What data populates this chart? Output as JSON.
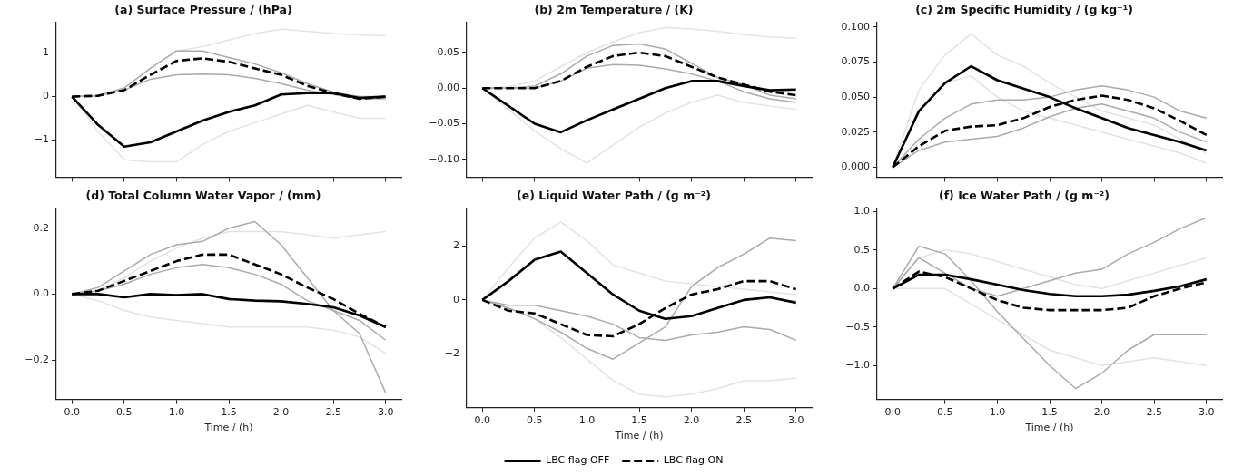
{
  "chart_data": [
    {
      "type": "line",
      "title": "(a) Surface Pressure / (hPa)",
      "tick_labels": "y",
      "x": [
        0,
        0.25,
        0.5,
        0.75,
        1,
        1.25,
        1.5,
        1.75,
        2,
        2.25,
        2.5,
        2.75,
        3
      ],
      "xlim": [
        -0.15,
        3.15
      ],
      "xticks": [
        0,
        0.5,
        1,
        1.5,
        2,
        2.5,
        3
      ],
      "ylim": [
        -1.85,
        1.7
      ],
      "yticks": [
        {
          "value": -1,
          "label": "−1"
        },
        0,
        1
      ],
      "series": [
        {
          "color": "#000000",
          "line_style": "solid",
          "values": [
            0,
            -0.65,
            -1.15,
            -1.05,
            -0.8,
            -0.55,
            -0.35,
            -0.2,
            0.05,
            0.08,
            0.08,
            -0.03,
            0
          ]
        },
        {
          "color": "#000000",
          "line_style": "dashed",
          "values": [
            0,
            0.02,
            0.15,
            0.5,
            0.82,
            0.88,
            0.8,
            0.65,
            0.5,
            0.25,
            0.08,
            -0.05,
            0
          ]
        },
        {
          "color": "#aaaaaa",
          "values": [
            0,
            0.02,
            0.2,
            0.65,
            1.05,
            1.05,
            0.9,
            0.75,
            0.55,
            0.3,
            0.1,
            0,
            0
          ]
        },
        {
          "color": "#aaaaaa",
          "values": [
            0,
            0.02,
            0.15,
            0.4,
            0.5,
            0.52,
            0.5,
            0.42,
            0.3,
            0.15,
            0.05,
            -0.05,
            -0.05
          ]
        },
        {
          "color": "#e3e3e3",
          "values": [
            0,
            0.03,
            0.2,
            0.65,
            1.05,
            1.15,
            1.3,
            1.45,
            1.55,
            1.5,
            1.45,
            1.42,
            1.4
          ]
        },
        {
          "color": "#e3e3e3",
          "values": [
            0,
            -0.8,
            -1.45,
            -1.5,
            -1.5,
            -1.1,
            -0.8,
            -0.6,
            -0.4,
            -0.2,
            -0.35,
            -0.5,
            -0.5
          ]
        }
      ]
    },
    {
      "type": "line",
      "title": "(b) 2m Temperature / (K)",
      "tick_labels": "y",
      "x": [
        0,
        0.25,
        0.5,
        0.75,
        1,
        1.25,
        1.5,
        1.75,
        2,
        2.25,
        2.5,
        2.75,
        3
      ],
      "xlim": [
        -0.15,
        3.15
      ],
      "xticks": [
        0,
        0.5,
        1,
        1.5,
        2,
        2.5,
        3
      ],
      "ylim": [
        -0.125,
        0.092
      ],
      "yticks": [
        {
          "value": -0.1,
          "label": "−0.10"
        },
        {
          "value": -0.05,
          "label": "−0.05"
        },
        {
          "value": 0,
          "label": "0.00"
        },
        {
          "value": 0.05,
          "label": "0.05"
        }
      ],
      "series": [
        {
          "color": "#000000",
          "line_style": "solid",
          "values": [
            0,
            -0.025,
            -0.05,
            -0.062,
            -0.045,
            -0.03,
            -0.015,
            0,
            0.01,
            0.01,
            0.003,
            -0.003,
            -0.002
          ]
        },
        {
          "color": "#000000",
          "line_style": "dashed",
          "values": [
            0,
            0,
            0,
            0.01,
            0.03,
            0.045,
            0.05,
            0.045,
            0.03,
            0.015,
            0.005,
            -0.005,
            -0.01
          ]
        },
        {
          "color": "#aaaaaa",
          "values": [
            0,
            0,
            0.003,
            0.02,
            0.045,
            0.06,
            0.062,
            0.055,
            0.035,
            0.015,
            0.005,
            -0.01,
            -0.015
          ]
        },
        {
          "color": "#aaaaaa",
          "values": [
            0,
            0,
            0,
            0.01,
            0.028,
            0.033,
            0.032,
            0.027,
            0.02,
            0.01,
            -0.005,
            -0.015,
            -0.02
          ]
        },
        {
          "color": "#e3e3e3",
          "values": [
            0,
            0.002,
            0.01,
            0.03,
            0.05,
            0.065,
            0.078,
            0.085,
            0.083,
            0.08,
            0.075,
            0.072,
            0.07
          ]
        },
        {
          "color": "#e3e3e3",
          "values": [
            0,
            -0.03,
            -0.06,
            -0.085,
            -0.105,
            -0.08,
            -0.055,
            -0.035,
            -0.02,
            -0.01,
            -0.02,
            -0.025,
            -0.03
          ]
        }
      ]
    },
    {
      "type": "line",
      "title": "(c) 2m Specific Humidity / (g kg⁻¹)",
      "tick_labels": "y",
      "x": [
        0,
        0.25,
        0.5,
        0.75,
        1,
        1.25,
        1.5,
        1.75,
        2,
        2.25,
        2.5,
        2.75,
        3
      ],
      "xlim": [
        -0.15,
        3.15
      ],
      "xticks": [
        0,
        0.5,
        1,
        1.5,
        2,
        2.5,
        3
      ],
      "ylim": [
        -0.007,
        0.103
      ],
      "yticks": [
        {
          "value": 0,
          "label": "0.000"
        },
        {
          "value": 0.025,
          "label": "0.025"
        },
        {
          "value": 0.05,
          "label": "0.050"
        },
        {
          "value": 0.075,
          "label": "0.075"
        },
        {
          "value": 0.1,
          "label": "0.100"
        }
      ],
      "series": [
        {
          "color": "#000000",
          "line_style": "solid",
          "values": [
            0,
            0.04,
            0.06,
            0.072,
            0.062,
            0.056,
            0.05,
            0.042,
            0.035,
            0.028,
            0.023,
            0.018,
            0.012
          ]
        },
        {
          "color": "#000000",
          "line_style": "dashed",
          "values": [
            0,
            0.015,
            0.026,
            0.029,
            0.03,
            0.035,
            0.043,
            0.048,
            0.051,
            0.048,
            0.042,
            0.033,
            0.023
          ]
        },
        {
          "color": "#aaaaaa",
          "values": [
            0,
            0.02,
            0.035,
            0.045,
            0.048,
            0.048,
            0.05,
            0.055,
            0.058,
            0.055,
            0.05,
            0.04,
            0.035
          ]
        },
        {
          "color": "#aaaaaa",
          "values": [
            0,
            0.012,
            0.018,
            0.02,
            0.022,
            0.028,
            0.036,
            0.042,
            0.045,
            0.04,
            0.035,
            0.025,
            0.018
          ]
        },
        {
          "color": "#e3e3e3",
          "values": [
            0,
            0.055,
            0.08,
            0.095,
            0.08,
            0.072,
            0.06,
            0.05,
            0.04,
            0.035,
            0.03,
            0.02,
            0.01
          ]
        },
        {
          "color": "#e3e3e3",
          "values": [
            0,
            0.04,
            0.06,
            0.065,
            0.05,
            0.04,
            0.035,
            0.03,
            0.025,
            0.02,
            0.015,
            0.01,
            0.003
          ]
        }
      ]
    },
    {
      "type": "line",
      "title": "(d) Total Column Water Vapor / (mm)",
      "xlabel": "Time / (h)",
      "x": [
        0,
        0.25,
        0.5,
        0.75,
        1,
        1.25,
        1.5,
        1.75,
        2,
        2.25,
        2.5,
        2.75,
        3
      ],
      "xlim": [
        -0.15,
        3.15
      ],
      "xticks": [
        {
          "value": 0,
          "label": "0.0"
        },
        {
          "value": 0.5,
          "label": "0.5"
        },
        {
          "value": 1,
          "label": "1.0"
        },
        {
          "value": 1.5,
          "label": "1.5"
        },
        {
          "value": 2,
          "label": "2.0"
        },
        {
          "value": 2.5,
          "label": "2.5"
        },
        {
          "value": 3,
          "label": "3.0"
        }
      ],
      "ylim": [
        -0.32,
        0.26
      ],
      "yticks": [
        {
          "value": -0.2,
          "label": "−0.2"
        },
        {
          "value": 0,
          "label": "0.0"
        },
        {
          "value": 0.2,
          "label": "0.2"
        }
      ],
      "series": [
        {
          "color": "#000000",
          "line_style": "solid",
          "values": [
            0,
            0,
            -0.01,
            0,
            -0.003,
            0,
            -0.015,
            -0.02,
            -0.022,
            -0.03,
            -0.04,
            -0.065,
            -0.1
          ]
        },
        {
          "color": "#000000",
          "line_style": "dashed",
          "values": [
            0,
            0.01,
            0.04,
            0.07,
            0.1,
            0.12,
            0.12,
            0.09,
            0.06,
            0.02,
            -0.015,
            -0.06,
            -0.1
          ]
        },
        {
          "color": "#aaaaaa",
          "values": [
            0,
            0.02,
            0.07,
            0.12,
            0.15,
            0.16,
            0.2,
            0.22,
            0.15,
            0.05,
            -0.05,
            -0.12,
            -0.3
          ]
        },
        {
          "color": "#aaaaaa",
          "values": [
            0,
            0.01,
            0.03,
            0.06,
            0.08,
            0.09,
            0.08,
            0.06,
            0.03,
            -0.02,
            -0.05,
            -0.08,
            -0.14
          ]
        },
        {
          "color": "#e3e3e3",
          "values": [
            0,
            0.01,
            0.05,
            0.1,
            0.14,
            0.17,
            0.19,
            0.19,
            0.19,
            0.18,
            0.17,
            0.18,
            0.19
          ]
        },
        {
          "color": "#e3e3e3",
          "values": [
            0,
            -0.02,
            -0.05,
            -0.07,
            -0.08,
            -0.09,
            -0.1,
            -0.1,
            -0.1,
            -0.1,
            -0.11,
            -0.13,
            -0.18
          ]
        }
      ]
    },
    {
      "type": "line",
      "title": "(e) Liquid Water Path / (g m⁻²)",
      "xlabel": "Time / (h)",
      "legend": "bottom",
      "x": [
        0,
        0.25,
        0.5,
        0.75,
        1,
        1.25,
        1.5,
        1.75,
        2,
        2.25,
        2.5,
        2.75,
        3
      ],
      "xlim": [
        -0.15,
        3.15
      ],
      "xticks": [
        {
          "value": 0,
          "label": "0.0"
        },
        {
          "value": 0.5,
          "label": "0.5"
        },
        {
          "value": 1,
          "label": "1.0"
        },
        {
          "value": 1.5,
          "label": "1.5"
        },
        {
          "value": 2,
          "label": "2.0"
        },
        {
          "value": 2.5,
          "label": "2.5"
        },
        {
          "value": 3,
          "label": "3.0"
        }
      ],
      "ylim": [
        -4,
        3.4
      ],
      "yticks": [
        {
          "value": -2,
          "label": "−2"
        },
        0,
        2
      ],
      "series": [
        {
          "name": "LBC flag OFF",
          "color": "#000000",
          "line_style": "solid",
          "values": [
            0,
            0.7,
            1.5,
            1.8,
            1,
            0.2,
            -0.4,
            -0.7,
            -0.6,
            -0.3,
            0,
            0.1,
            -0.1
          ]
        },
        {
          "name": "LBC flag ON",
          "color": "#000000",
          "line_style": "dashed",
          "values": [
            0,
            -0.4,
            -0.5,
            -0.9,
            -1.3,
            -1.35,
            -0.9,
            -0.3,
            0.2,
            0.4,
            0.7,
            0.7,
            0.4
          ]
        },
        {
          "color": "#aaaaaa",
          "values": [
            0,
            -0.3,
            -0.7,
            -1.2,
            -1.8,
            -2.2,
            -1.6,
            -1,
            0.5,
            1.2,
            1.7,
            2.3,
            2.2
          ]
        },
        {
          "color": "#aaaaaa",
          "values": [
            0,
            -0.2,
            -0.2,
            -0.4,
            -0.6,
            -0.9,
            -1.4,
            -1.5,
            -1.3,
            -1.2,
            -1,
            -1.1,
            -1.5
          ]
        },
        {
          "color": "#e3e3e3",
          "values": [
            0,
            1.2,
            2.3,
            2.9,
            2.2,
            1.3,
            1,
            0.7,
            0.6,
            0.5,
            0.4,
            0.3,
            0.2
          ]
        },
        {
          "color": "#e3e3e3",
          "values": [
            0,
            -0.3,
            -0.7,
            -1.4,
            -2.2,
            -3,
            -3.5,
            -3.6,
            -3.5,
            -3.3,
            -3,
            -3,
            -2.9
          ]
        }
      ]
    },
    {
      "type": "line",
      "title": "(f) Ice Water Path / (g m⁻²)",
      "xlabel": "Time / (h)",
      "x": [
        0,
        0.25,
        0.5,
        0.75,
        1,
        1.25,
        1.5,
        1.75,
        2,
        2.25,
        2.5,
        2.75,
        3
      ],
      "xlim": [
        -0.15,
        3.15
      ],
      "xticks": [
        {
          "value": 0,
          "label": "0.0"
        },
        {
          "value": 0.5,
          "label": "0.5"
        },
        {
          "value": 1,
          "label": "1.0"
        },
        {
          "value": 1.5,
          "label": "1.5"
        },
        {
          "value": 2,
          "label": "2.0"
        },
        {
          "value": 2.5,
          "label": "2.5"
        },
        {
          "value": 3,
          "label": "3.0"
        }
      ],
      "ylim": [
        -1.44,
        1.04
      ],
      "yticks": [
        {
          "value": -1,
          "label": "−1.0"
        },
        {
          "value": -0.5,
          "label": "−0.5"
        },
        {
          "value": 0,
          "label": "0.0"
        },
        {
          "value": 0.5,
          "label": "0.5"
        },
        {
          "value": 1,
          "label": "1.0"
        }
      ],
      "series": [
        {
          "color": "#000000",
          "line_style": "solid",
          "values": [
            0,
            0.18,
            0.18,
            0.12,
            0.05,
            -0.02,
            -0.07,
            -0.1,
            -0.1,
            -0.08,
            -0.03,
            0.03,
            0.12
          ]
        },
        {
          "color": "#000000",
          "line_style": "dashed",
          "values": [
            0,
            0.22,
            0.15,
            0,
            -0.15,
            -0.25,
            -0.28,
            -0.28,
            -0.28,
            -0.25,
            -0.1,
            0,
            0.08
          ]
        },
        {
          "color": "#aaaaaa",
          "values": [
            0,
            0.55,
            0.45,
            0.1,
            -0.3,
            -0.65,
            -1,
            -1.3,
            -1.1,
            -0.8,
            -0.6,
            -0.6,
            -0.6
          ]
        },
        {
          "color": "#aaaaaa",
          "values": [
            0,
            0.4,
            0.2,
            0,
            -0.1,
            0,
            0.1,
            0.2,
            0.25,
            0.45,
            0.6,
            0.78,
            0.92
          ]
        },
        {
          "color": "#e3e3e3",
          "values": [
            0,
            0.4,
            0.5,
            0.45,
            0.35,
            0.25,
            0.15,
            0.05,
            0,
            0.1,
            0.2,
            0.3,
            0.4
          ]
        },
        {
          "color": "#e3e3e3",
          "values": [
            0,
            0,
            0,
            -0.2,
            -0.4,
            -0.6,
            -0.8,
            -0.9,
            -1,
            -0.95,
            -0.9,
            -0.95,
            -1
          ]
        }
      ]
    }
  ]
}
